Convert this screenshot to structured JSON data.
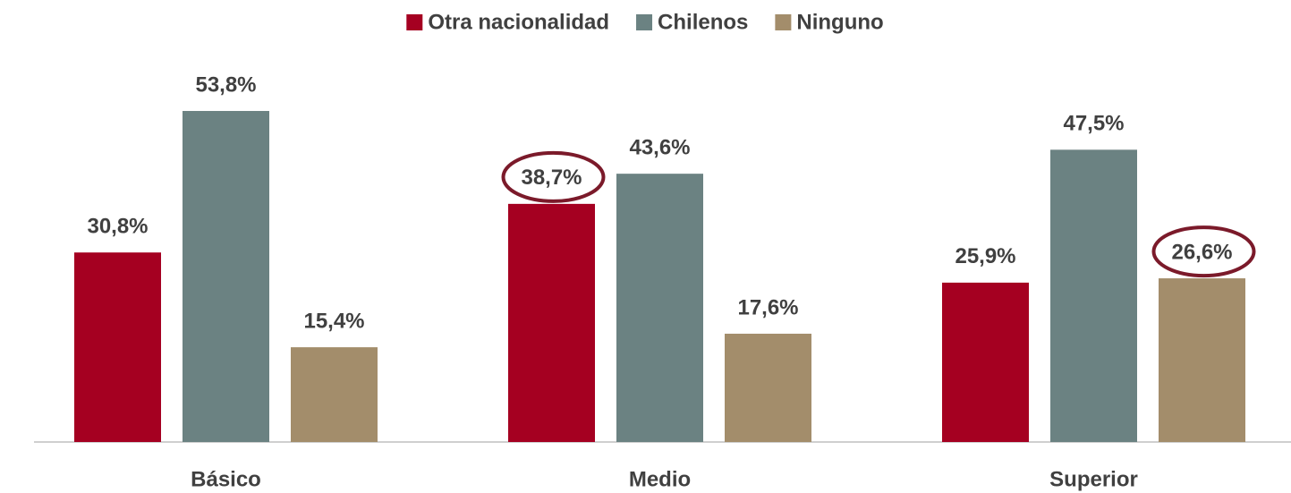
{
  "chart_data": {
    "type": "bar",
    "categories": [
      "Básico",
      "Medio",
      "Superior"
    ],
    "series": [
      {
        "name": "Otra nacionalidad",
        "color": "#a50021",
        "values": [
          30.8,
          38.7,
          25.9
        ],
        "value_labels": [
          "30,8%",
          "38,7%",
          "25,9%"
        ]
      },
      {
        "name": "Chilenos",
        "color": "#6b8282",
        "values": [
          53.8,
          43.6,
          47.5
        ],
        "value_labels": [
          "53,8%",
          "43,6%",
          "47,5%"
        ]
      },
      {
        "name": "Ninguno",
        "color": "#a38d6b",
        "values": [
          15.4,
          17.6,
          26.6
        ],
        "value_labels": [
          "15,4%",
          "17,6%",
          "26,6%"
        ]
      }
    ],
    "highlight": [
      {
        "series": 0,
        "index": 1
      },
      {
        "series": 2,
        "index": 2
      }
    ],
    "legend": "top"
  }
}
